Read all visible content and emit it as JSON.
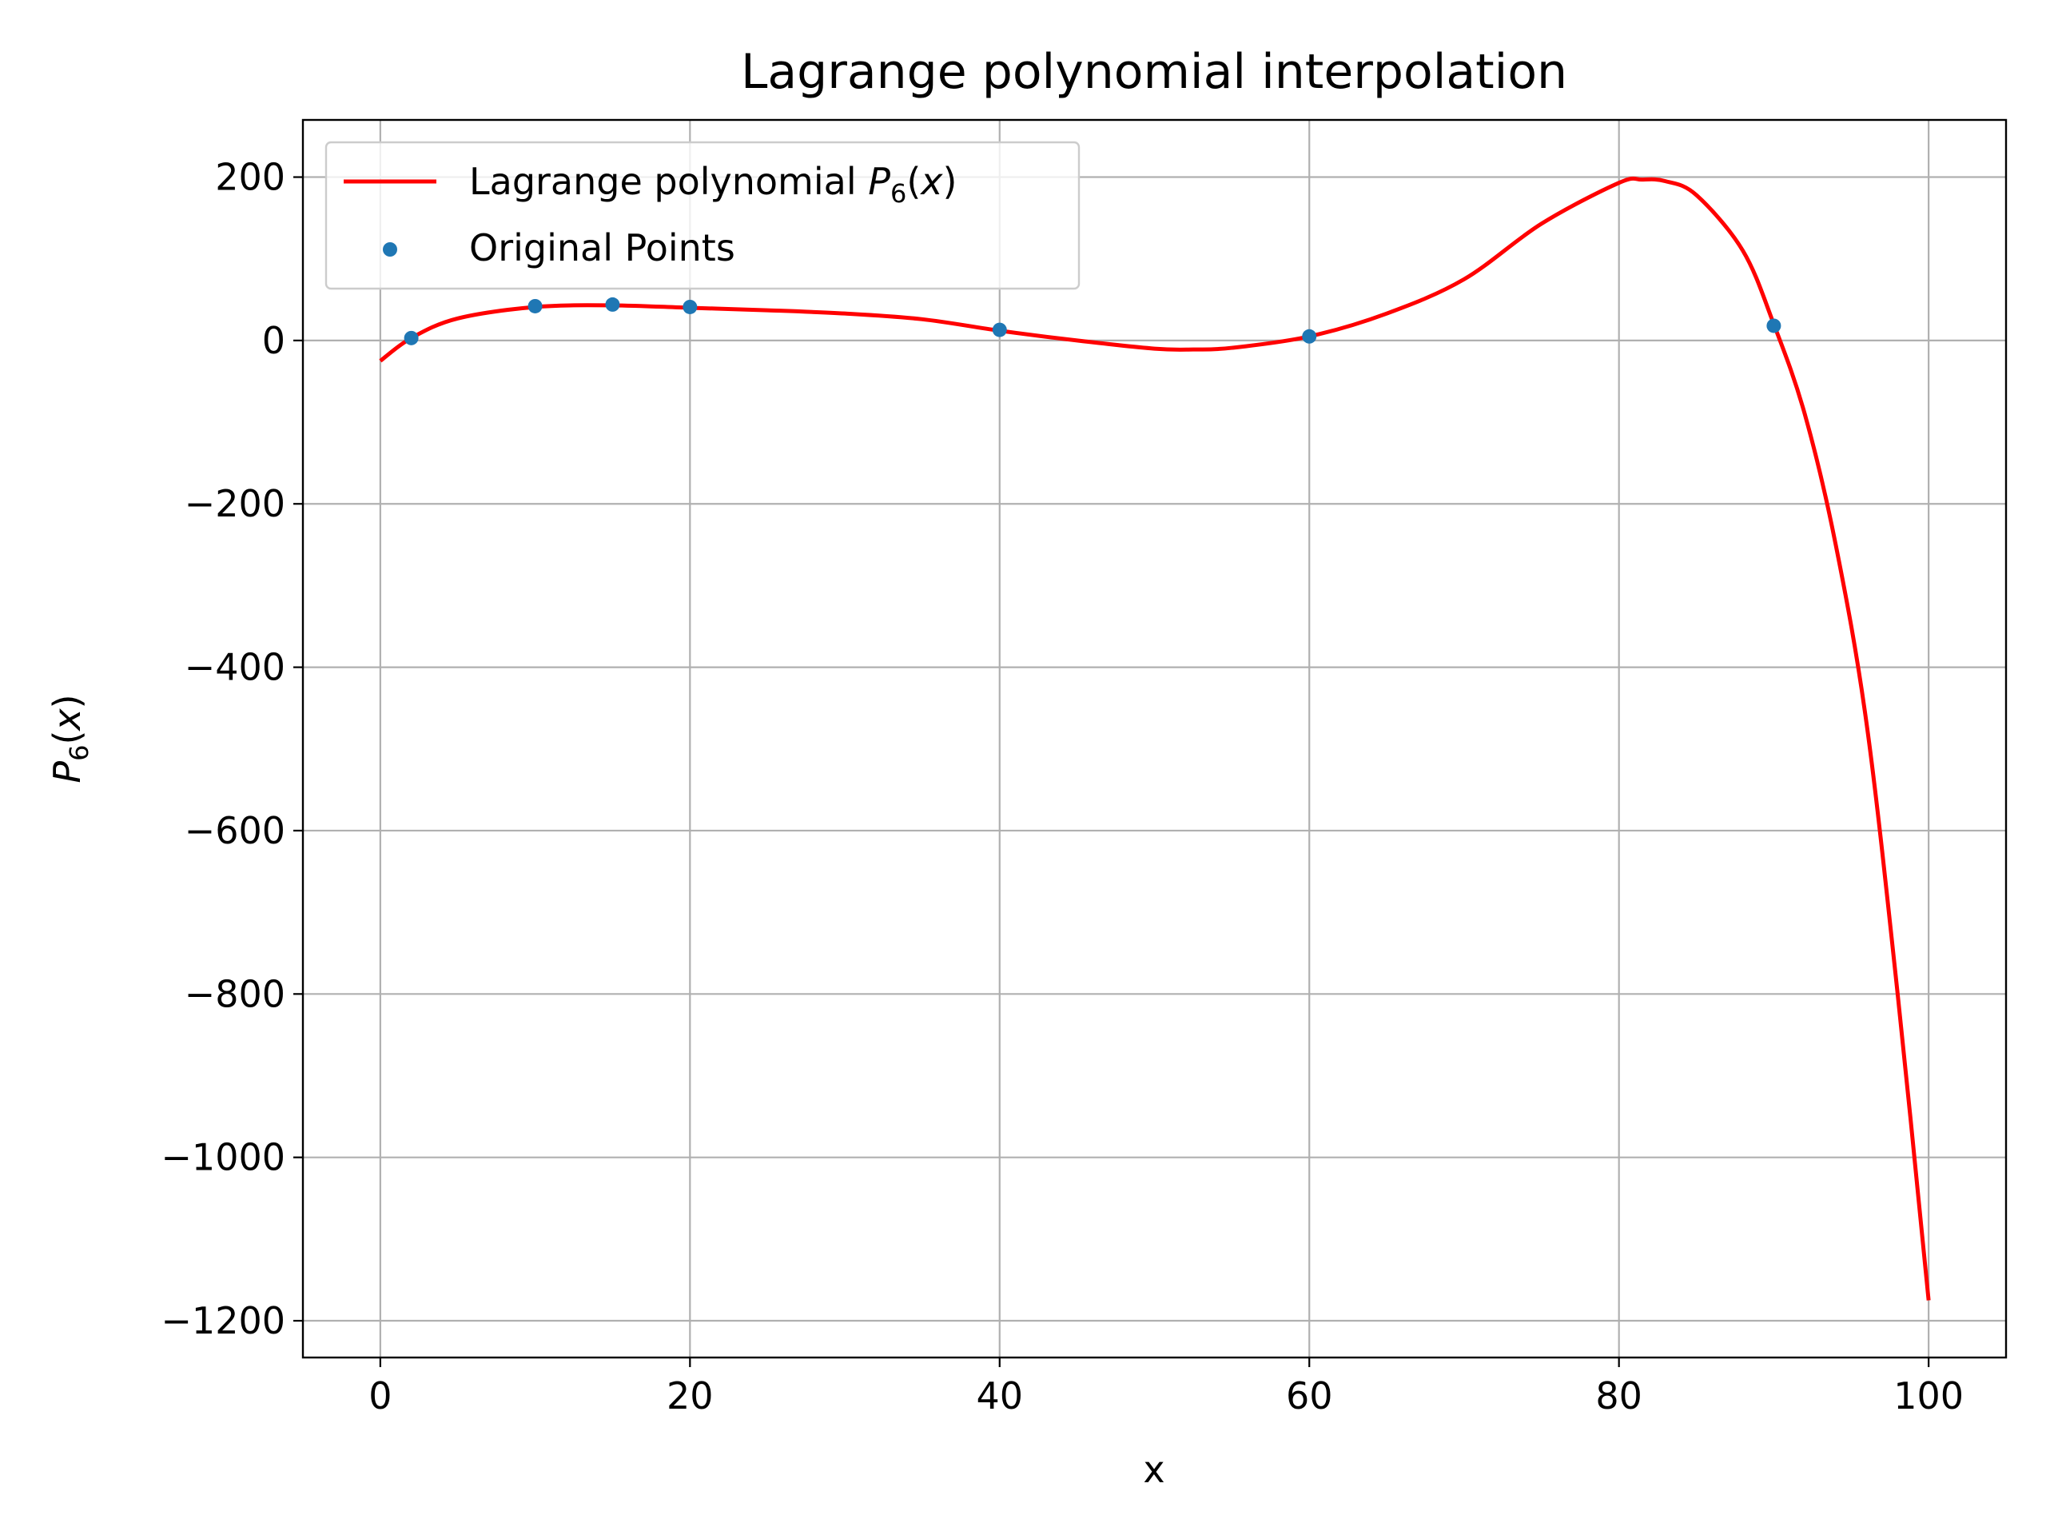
{
  "chart_data": {
    "type": "line",
    "title": "Lagrange polynomial interpolation",
    "xlabel": "x",
    "ylabel": "P_6(x)",
    "xlim": [
      -5,
      105
    ],
    "ylim": [
      -1245,
      270
    ],
    "x_ticks": [
      0,
      20,
      40,
      60,
      80,
      100
    ],
    "y_ticks": [
      200,
      0,
      -200,
      -400,
      -600,
      -800,
      -1000,
      -1200
    ],
    "x_tick_labels": [
      "0",
      "20",
      "40",
      "60",
      "80",
      "100"
    ],
    "y_tick_labels": [
      "200",
      "0",
      "−200",
      "−400",
      "−600",
      "−800",
      "−1000",
      "−1200"
    ],
    "grid": true,
    "legend_position": "top-left",
    "series": [
      {
        "name": "Lagrange polynomial P6(x)",
        "legend_label_prefix": "Lagrange polynomial ",
        "legend_label_math": "P",
        "legend_label_sub": "6",
        "legend_label_suffix": "(x)",
        "kind": "line",
        "color": "#ff0000",
        "x": [
          0,
          2,
          5,
          10,
          15,
          20,
          25,
          30,
          35,
          40,
          45,
          50,
          52.5,
          55,
          60,
          65,
          70,
          75,
          80,
          81.5,
          83,
          85,
          88,
          90,
          92,
          94,
          96,
          98,
          100
        ],
        "y": [
          -25,
          3,
          27,
          41,
          43,
          40,
          37,
          33,
          26,
          12,
          0,
          -10,
          -11,
          -9,
          5,
          33,
          75,
          143,
          193,
          197,
          195,
          178,
          110,
          20,
          -90,
          -250,
          -470,
          -800,
          -1175
        ]
      },
      {
        "name": "Original Points",
        "kind": "scatter",
        "color": "#1f77b4",
        "x": [
          2,
          10,
          15,
          20,
          40,
          60,
          90
        ],
        "y": [
          3,
          42,
          44,
          41,
          13,
          5,
          18
        ]
      }
    ]
  }
}
